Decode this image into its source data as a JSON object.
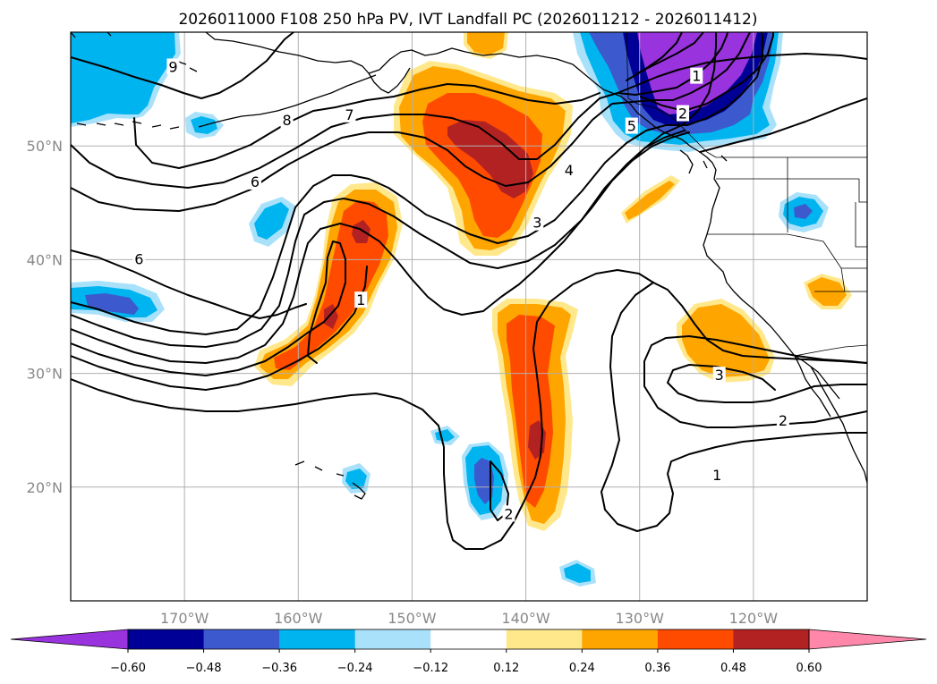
{
  "title": "2026011000 F108 250 hPa PV, IVT Landfall PC (2026011212 - 2026011412)",
  "map": {
    "lon_range": [
      -180,
      -110
    ],
    "lat_range": [
      10,
      60
    ],
    "projection": "PlateCarree",
    "gridlines": true,
    "lon_ticks": [
      {
        "lon": -170,
        "label": "170°W"
      },
      {
        "lon": -160,
        "label": "160°W"
      },
      {
        "lon": -150,
        "label": "150°W"
      },
      {
        "lon": -140,
        "label": "140°W"
      },
      {
        "lon": -130,
        "label": "130°W"
      },
      {
        "lon": -120,
        "label": "120°W"
      }
    ],
    "lat_ticks": [
      {
        "lat": 20,
        "label": "20°N"
      },
      {
        "lat": 30,
        "label": "30°N"
      },
      {
        "lat": 40,
        "label": "40°N"
      },
      {
        "lat": 50,
        "label": "50°N"
      }
    ]
  },
  "contour_labels": [
    {
      "text": "9",
      "lon": -171.0,
      "lat": 56.9
    },
    {
      "text": "8",
      "lon": -161.0,
      "lat": 52.2
    },
    {
      "text": "7",
      "lon": -155.5,
      "lat": 52.7
    },
    {
      "text": "6",
      "lon": -163.8,
      "lat": 46.8
    },
    {
      "text": "6",
      "lon": -174.0,
      "lat": 40.0
    },
    {
      "text": "5",
      "lon": -130.7,
      "lat": 51.7
    },
    {
      "text": "4",
      "lon": -136.2,
      "lat": 47.8
    },
    {
      "text": "3",
      "lon": -139.0,
      "lat": 43.2
    },
    {
      "text": "2",
      "lon": -126.2,
      "lat": 52.8
    },
    {
      "text": "1",
      "lon": -125.0,
      "lat": 56.1
    },
    {
      "text": "1",
      "lon": -154.5,
      "lat": 36.4
    },
    {
      "text": "3",
      "lon": -123.0,
      "lat": 29.8
    },
    {
      "text": "2",
      "lon": -117.4,
      "lat": 25.8
    },
    {
      "text": "1",
      "lon": -123.2,
      "lat": 21.0
    },
    {
      "text": "2",
      "lon": -141.5,
      "lat": 17.6
    }
  ],
  "colorbar": {
    "levels": [
      -0.6,
      -0.48,
      -0.36,
      -0.24,
      -0.12,
      0.12,
      0.24,
      0.36,
      0.48,
      0.6
    ],
    "tick_labels": [
      "−0.60",
      "−0.48",
      "−0.36",
      "−0.24",
      "−0.12",
      "0.12",
      "0.24",
      "0.36",
      "0.48",
      "0.60"
    ],
    "colors": [
      "#9933dd",
      "#000096",
      "#3c5acd",
      "#00b4f0",
      "#aae1fa",
      "#ffffff",
      "#ffe88c",
      "#ffa500",
      "#ff4b00",
      "#b32222",
      "#ff88aa"
    ],
    "extend": "both"
  },
  "colors": {
    "grid": "#b0b0b0",
    "tick_text": "#888888"
  }
}
